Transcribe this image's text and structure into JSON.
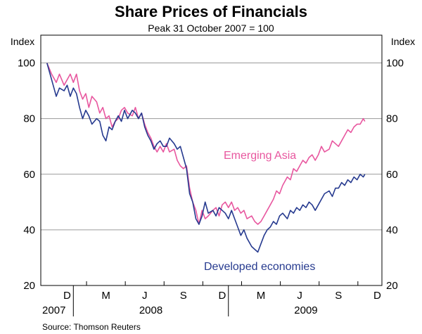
{
  "chart_data": {
    "type": "line",
    "title": "Share Prices of Financials",
    "subtitle": "Peak 31 October 2007 = 100",
    "ylabel_left": "Index",
    "ylabel_right": "Index",
    "ylim": [
      20,
      110
    ],
    "yticks": [
      20,
      40,
      60,
      80,
      100
    ],
    "grid": true,
    "xlim": [
      2007.79,
      2009.99
    ],
    "months": [
      {
        "label": "D",
        "t": 2007.96
      },
      {
        "label": "M",
        "t": 2008.21
      },
      {
        "label": "J",
        "t": 2008.46
      },
      {
        "label": "S",
        "t": 2008.71
      },
      {
        "label": "D",
        "t": 2008.96
      },
      {
        "label": "M",
        "t": 2009.21
      },
      {
        "label": "J",
        "t": 2009.46
      },
      {
        "label": "S",
        "t": 2009.71
      },
      {
        "label": "D",
        "t": 2009.96
      }
    ],
    "years": [
      {
        "label": "2007",
        "t": 2007.875
      },
      {
        "label": "2008",
        "t": 2008.5
      },
      {
        "label": "2009",
        "t": 2009.5
      }
    ],
    "series": [
      {
        "name": "Emerging Asia",
        "label": "Emerging Asia",
        "color": "#e8579f",
        "points": [
          [
            2007.83,
            100
          ],
          [
            2007.86,
            96
          ],
          [
            2007.89,
            93
          ],
          [
            2007.91,
            96
          ],
          [
            2007.94,
            92
          ],
          [
            2007.96,
            94
          ],
          [
            2007.98,
            96
          ],
          [
            2008.0,
            93
          ],
          [
            2008.02,
            96
          ],
          [
            2008.04,
            90
          ],
          [
            2008.06,
            87
          ],
          [
            2008.08,
            89
          ],
          [
            2008.1,
            84
          ],
          [
            2008.12,
            88
          ],
          [
            2008.15,
            86
          ],
          [
            2008.17,
            82
          ],
          [
            2008.19,
            84
          ],
          [
            2008.21,
            80
          ],
          [
            2008.23,
            81
          ],
          [
            2008.25,
            77
          ],
          [
            2008.27,
            79
          ],
          [
            2008.29,
            80
          ],
          [
            2008.31,
            83
          ],
          [
            2008.33,
            84
          ],
          [
            2008.35,
            82
          ],
          [
            2008.38,
            81
          ],
          [
            2008.4,
            84
          ],
          [
            2008.42,
            80
          ],
          [
            2008.44,
            82
          ],
          [
            2008.46,
            78
          ],
          [
            2008.48,
            75
          ],
          [
            2008.5,
            73
          ],
          [
            2008.52,
            70
          ],
          [
            2008.54,
            68
          ],
          [
            2008.56,
            70
          ],
          [
            2008.58,
            68
          ],
          [
            2008.6,
            71
          ],
          [
            2008.62,
            68
          ],
          [
            2008.65,
            69
          ],
          [
            2008.67,
            65
          ],
          [
            2008.69,
            63
          ],
          [
            2008.71,
            62
          ],
          [
            2008.73,
            63
          ],
          [
            2008.75,
            55
          ],
          [
            2008.77,
            50
          ],
          [
            2008.79,
            47
          ],
          [
            2008.81,
            42
          ],
          [
            2008.83,
            47
          ],
          [
            2008.85,
            44
          ],
          [
            2008.87,
            45
          ],
          [
            2008.9,
            47
          ],
          [
            2008.92,
            48
          ],
          [
            2008.94,
            45
          ],
          [
            2008.96,
            49
          ],
          [
            2008.98,
            50
          ],
          [
            2009.0,
            48
          ],
          [
            2009.02,
            50
          ],
          [
            2009.04,
            47
          ],
          [
            2009.06,
            48
          ],
          [
            2009.08,
            46
          ],
          [
            2009.1,
            47
          ],
          [
            2009.12,
            44
          ],
          [
            2009.15,
            45
          ],
          [
            2009.17,
            43
          ],
          [
            2009.19,
            42
          ],
          [
            2009.21,
            43
          ],
          [
            2009.23,
            45
          ],
          [
            2009.25,
            47
          ],
          [
            2009.27,
            49
          ],
          [
            2009.29,
            51
          ],
          [
            2009.31,
            54
          ],
          [
            2009.33,
            53
          ],
          [
            2009.35,
            56
          ],
          [
            2009.38,
            59
          ],
          [
            2009.4,
            58
          ],
          [
            2009.42,
            62
          ],
          [
            2009.44,
            61
          ],
          [
            2009.46,
            63
          ],
          [
            2009.48,
            65
          ],
          [
            2009.5,
            64
          ],
          [
            2009.52,
            66
          ],
          [
            2009.54,
            67
          ],
          [
            2009.56,
            65
          ],
          [
            2009.58,
            67
          ],
          [
            2009.6,
            70
          ],
          [
            2009.62,
            68
          ],
          [
            2009.65,
            69
          ],
          [
            2009.67,
            72
          ],
          [
            2009.69,
            71
          ],
          [
            2009.71,
            70
          ],
          [
            2009.73,
            72
          ],
          [
            2009.75,
            74
          ],
          [
            2009.77,
            76
          ],
          [
            2009.79,
            75
          ],
          [
            2009.81,
            77
          ],
          [
            2009.83,
            78
          ],
          [
            2009.85,
            78
          ],
          [
            2009.87,
            80
          ],
          [
            2009.88,
            79
          ]
        ]
      },
      {
        "name": "Developed economies",
        "label": "Developed economies",
        "color": "#263a8f",
        "points": [
          [
            2007.83,
            100
          ],
          [
            2007.85,
            96
          ],
          [
            2007.87,
            92
          ],
          [
            2007.89,
            88
          ],
          [
            2007.91,
            91
          ],
          [
            2007.94,
            90
          ],
          [
            2007.96,
            92
          ],
          [
            2007.98,
            88
          ],
          [
            2008.0,
            91
          ],
          [
            2008.02,
            89
          ],
          [
            2008.04,
            84
          ],
          [
            2008.06,
            80
          ],
          [
            2008.08,
            83
          ],
          [
            2008.1,
            81
          ],
          [
            2008.12,
            78
          ],
          [
            2008.15,
            80
          ],
          [
            2008.17,
            79
          ],
          [
            2008.19,
            74
          ],
          [
            2008.21,
            72
          ],
          [
            2008.23,
            77
          ],
          [
            2008.25,
            76
          ],
          [
            2008.27,
            79
          ],
          [
            2008.29,
            81
          ],
          [
            2008.31,
            79
          ],
          [
            2008.33,
            83
          ],
          [
            2008.35,
            80
          ],
          [
            2008.38,
            83
          ],
          [
            2008.4,
            82
          ],
          [
            2008.42,
            80
          ],
          [
            2008.44,
            82
          ],
          [
            2008.46,
            77
          ],
          [
            2008.48,
            74
          ],
          [
            2008.5,
            72
          ],
          [
            2008.52,
            69
          ],
          [
            2008.54,
            71
          ],
          [
            2008.56,
            72
          ],
          [
            2008.58,
            70
          ],
          [
            2008.6,
            70
          ],
          [
            2008.62,
            73
          ],
          [
            2008.65,
            71
          ],
          [
            2008.67,
            69
          ],
          [
            2008.69,
            70
          ],
          [
            2008.71,
            66
          ],
          [
            2008.73,
            62
          ],
          [
            2008.75,
            53
          ],
          [
            2008.77,
            50
          ],
          [
            2008.79,
            44
          ],
          [
            2008.81,
            42
          ],
          [
            2008.83,
            45
          ],
          [
            2008.85,
            50
          ],
          [
            2008.87,
            46
          ],
          [
            2008.9,
            47
          ],
          [
            2008.92,
            45
          ],
          [
            2008.94,
            48
          ],
          [
            2008.96,
            47
          ],
          [
            2008.98,
            46
          ],
          [
            2009.0,
            44
          ],
          [
            2009.02,
            47
          ],
          [
            2009.04,
            44
          ],
          [
            2009.06,
            41
          ],
          [
            2009.08,
            38
          ],
          [
            2009.1,
            40
          ],
          [
            2009.12,
            37
          ],
          [
            2009.15,
            34
          ],
          [
            2009.17,
            33
          ],
          [
            2009.19,
            32
          ],
          [
            2009.21,
            35
          ],
          [
            2009.23,
            38
          ],
          [
            2009.25,
            40
          ],
          [
            2009.27,
            41
          ],
          [
            2009.29,
            43
          ],
          [
            2009.31,
            42
          ],
          [
            2009.33,
            45
          ],
          [
            2009.35,
            46
          ],
          [
            2009.38,
            44
          ],
          [
            2009.4,
            47
          ],
          [
            2009.42,
            46
          ],
          [
            2009.44,
            48
          ],
          [
            2009.46,
            47
          ],
          [
            2009.48,
            49
          ],
          [
            2009.5,
            48
          ],
          [
            2009.52,
            50
          ],
          [
            2009.54,
            49
          ],
          [
            2009.56,
            47
          ],
          [
            2009.58,
            49
          ],
          [
            2009.6,
            51
          ],
          [
            2009.62,
            53
          ],
          [
            2009.65,
            54
          ],
          [
            2009.67,
            52
          ],
          [
            2009.69,
            55
          ],
          [
            2009.71,
            55
          ],
          [
            2009.73,
            57
          ],
          [
            2009.75,
            56
          ],
          [
            2009.77,
            58
          ],
          [
            2009.79,
            57
          ],
          [
            2009.81,
            59
          ],
          [
            2009.83,
            58
          ],
          [
            2009.85,
            60
          ],
          [
            2009.87,
            59
          ],
          [
            2009.88,
            60
          ]
        ]
      }
    ]
  },
  "source": "Source: Thomson Reuters"
}
